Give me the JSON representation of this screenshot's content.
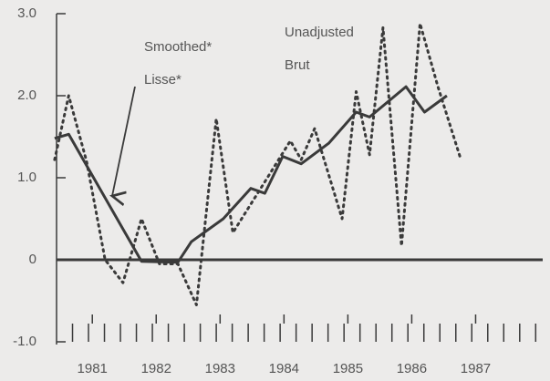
{
  "chart_data": {
    "type": "line",
    "xlim": [
      1980.94,
      1988.55
    ],
    "ylim": [
      -1,
      3
    ],
    "yticks": [
      {
        "value": 3,
        "label": "3.0"
      },
      {
        "value": 2,
        "label": "2.0"
      },
      {
        "value": 1,
        "label": "1.0"
      },
      0,
      {
        "value": -1,
        "label": "-1.0"
      }
    ],
    "xticks": [
      {
        "value": 1981.5,
        "label": "1981"
      },
      {
        "value": 1982.5,
        "label": "1982"
      },
      {
        "value": 1983.5,
        "label": "1983"
      },
      {
        "value": 1984.5,
        "label": "1984"
      },
      {
        "value": 1985.5,
        "label": "1985"
      },
      {
        "value": 1986.5,
        "label": "1986"
      },
      {
        "value": 1987.5,
        "label": "1987"
      }
    ],
    "annotations": [
      "Smoothed*",
      "Lisse*",
      "Unadjusted",
      "Brut"
    ],
    "series": [
      {
        "name": "Smoothed",
        "color": "#3a3a3a",
        "style": "solid",
        "x": [
          1980.91,
          1981.13,
          1982.27,
          1982.84,
          1983.05,
          1983.55,
          1983.98,
          1984.2,
          1984.48,
          1984.77,
          1985.2,
          1985.63,
          1985.84,
          1986.41,
          1986.7,
          1987.05
        ],
        "values": [
          1.48,
          1.53,
          -0.02,
          -0.03,
          0.22,
          0.5,
          0.87,
          0.81,
          1.26,
          1.17,
          1.42,
          1.8,
          1.74,
          2.11,
          1.8,
          2.0
        ]
      },
      {
        "name": "Unadjusted",
        "color": "#3a3a3a",
        "style": "dotted",
        "x": [
          1980.91,
          1981.13,
          1981.41,
          1981.7,
          1981.98,
          1982.27,
          1982.55,
          1982.84,
          1983.13,
          1983.44,
          1983.7,
          1984.2,
          1984.6,
          1984.77,
          1984.98,
          1985.41,
          1985.63,
          1985.84,
          1986.05,
          1986.34,
          1986.63,
          1986.91,
          1987.27
        ],
        "values": [
          1.22,
          2.0,
          1.2,
          0,
          -0.28,
          0.5,
          -0.05,
          -0.05,
          -0.55,
          1.72,
          0.33,
          0.95,
          1.45,
          1.22,
          1.6,
          0.5,
          2.05,
          1.28,
          2.83,
          0.17,
          2.88,
          2.11,
          1.22
        ]
      }
    ]
  }
}
